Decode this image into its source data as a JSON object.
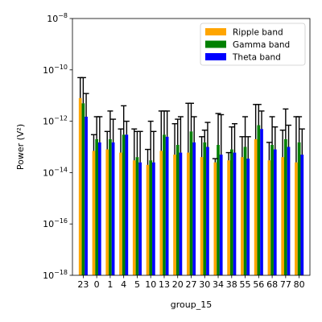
{
  "chart_data": {
    "type": "bar",
    "xlabel": "group_15",
    "ylabel": "Power (V²)",
    "yscale": "log",
    "ylim": [
      1e-18,
      1e-08
    ],
    "ytick_exponents": [
      -18,
      -16,
      -14,
      -12,
      -10,
      -8
    ],
    "legend_position": "top-right",
    "categories": [
      "23",
      "0",
      "1",
      "4",
      "5",
      "10",
      "13",
      "20",
      "27",
      "30",
      "34",
      "38",
      "55",
      "56",
      "68",
      "77",
      "80"
    ],
    "series": [
      {
        "name": "Ripple band",
        "color": "#ffa500",
        "values": [
          8e-12,
          7e-14,
          8e-14,
          6e-14,
          3e-14,
          2e-14,
          7e-14,
          5e-14,
          6e-14,
          4e-14,
          2.5e-14,
          3e-14,
          4e-14,
          2e-13,
          3e-14,
          4e-14,
          2.5e-14
        ],
        "err_upper": [
          5e-11,
          3e-13,
          4e-13,
          5e-13,
          5e-13,
          8e-14,
          2.5e-12,
          8e-13,
          5e-12,
          2.5e-13,
          3.5e-14,
          6e-14,
          2.5e-13,
          4.5e-12,
          1.5e-13,
          4.5e-13,
          1.5e-12
        ]
      },
      {
        "name": "Gamma band",
        "color": "#008000",
        "values": [
          5e-12,
          2e-13,
          2e-13,
          3e-13,
          4e-14,
          3e-14,
          3e-13,
          1.2e-13,
          4e-13,
          1.5e-13,
          1.2e-13,
          8e-14,
          1e-13,
          7e-13,
          1.2e-13,
          2e-13,
          1.5e-13
        ],
        "err_upper": [
          5e-11,
          1.5e-12,
          2.5e-12,
          4e-12,
          4e-13,
          1e-12,
          2.5e-12,
          1.2e-12,
          5e-12,
          4.5e-13,
          2e-12,
          6e-13,
          1.5e-12,
          4.5e-12,
          1.5e-12,
          3e-12,
          1.5e-12
        ]
      },
      {
        "name": "Theta band",
        "color": "#0000ff",
        "values": [
          1.5e-12,
          1.5e-13,
          1.5e-13,
          3e-13,
          2.5e-14,
          2.5e-14,
          2.5e-13,
          6e-14,
          1.5e-13,
          1e-13,
          5e-14,
          6e-14,
          3.5e-14,
          5e-13,
          8e-14,
          1e-13,
          5e-14
        ],
        "err_upper": [
          1.2e-11,
          1.5e-12,
          1.2e-12,
          1e-12,
          4e-13,
          4e-13,
          2.5e-12,
          1.5e-12,
          1.5e-12,
          9e-13,
          1.8e-12,
          8e-13,
          2.5e-13,
          2.5e-12,
          6e-13,
          7e-13,
          5e-13
        ]
      }
    ]
  }
}
